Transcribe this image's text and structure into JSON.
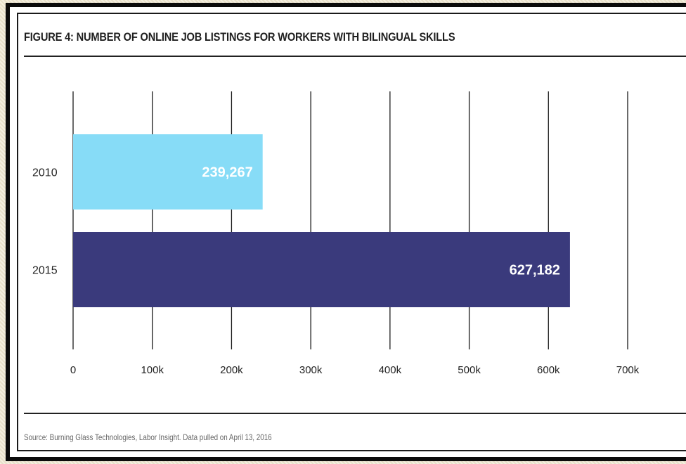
{
  "chart_data": {
    "type": "bar",
    "orientation": "horizontal",
    "title": "FIGURE 4: NUMBER OF ONLINE JOB LISTINGS FOR WORKERS WITH BILINGUAL SKILLS",
    "categories": [
      "2010",
      "2015"
    ],
    "values": [
      239267,
      627182
    ],
    "data_labels": [
      "239,267",
      "627,182"
    ],
    "bar_colors": [
      "#87dcf7",
      "#3a3a7c"
    ],
    "xlim": [
      0,
      700000
    ],
    "x_ticks": [
      0,
      100000,
      200000,
      300000,
      400000,
      500000,
      600000,
      700000
    ],
    "x_tick_labels": [
      "0",
      "100k",
      "200k",
      "300k",
      "400k",
      "500k",
      "600k",
      "700k"
    ],
    "grid": "vertical",
    "source": "Source: Burning Glass Technologies, Labor Insight. Data pulled on April 13, 2016"
  }
}
